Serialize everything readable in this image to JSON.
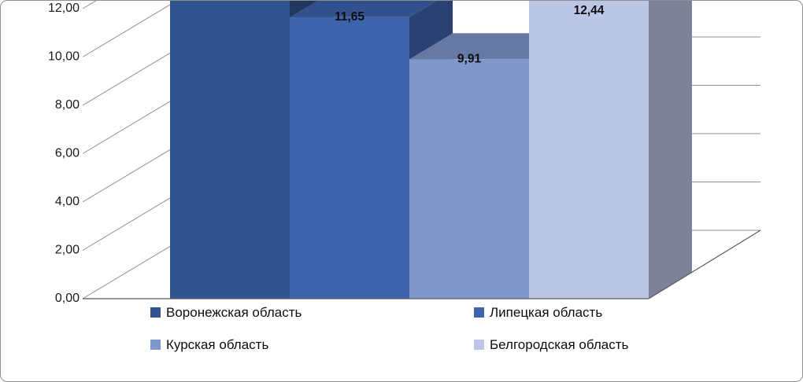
{
  "chart_data": {
    "type": "bar",
    "subtype": "3d-column",
    "title": "",
    "xlabel": "",
    "ylabel": "",
    "categories": [
      "Воронежская область",
      "Липецкая область",
      "Курская область",
      "Белгородская область"
    ],
    "series": [
      {
        "name": "",
        "values": [
          null,
          11.65,
          9.91,
          12.44
        ]
      }
    ],
    "data_labels": [
      null,
      "11,65",
      "9,91",
      "12,44"
    ],
    "bar_colors": [
      "#31538F",
      "#3E64AE",
      "#8097CB",
      "#BCC7E8"
    ],
    "ylim": [
      0,
      12
    ],
    "y_tick_labels": [
      "0,00",
      "2,00",
      "4,00",
      "6,00",
      "8,00",
      "10,00",
      "12,00"
    ],
    "y_tick_values": [
      0,
      2,
      4,
      6,
      8,
      10,
      12
    ],
    "top_cropped": true,
    "grid": true,
    "legend_position": "bottom",
    "legend": {
      "items": [
        {
          "label": "Воронежская область",
          "color": "#31538F"
        },
        {
          "label": "Липецкая область",
          "color": "#3E64AE"
        },
        {
          "label": "Курская область",
          "color": "#8097CB"
        },
        {
          "label": "Белгородская область",
          "color": "#BCC7E8"
        }
      ]
    }
  }
}
